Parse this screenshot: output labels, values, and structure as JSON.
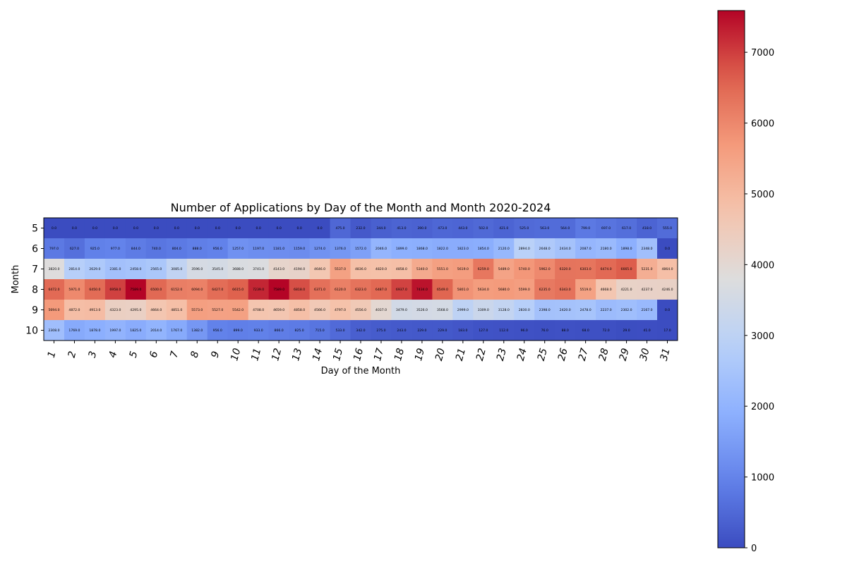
{
  "chart_data": {
    "type": "heatmap",
    "title": "Number of Applications by Day of the Month and Month 2020-2024",
    "xlabel": "Day of the Month",
    "ylabel": "Month",
    "colormap": "coolwarm",
    "colorbar": {
      "min": 0,
      "max": 7589,
      "ticks": [
        "0",
        "1000",
        "2000",
        "3000",
        "4000",
        "5000",
        "6000",
        "7000"
      ],
      "tick_values": [
        0,
        1000,
        2000,
        3000,
        4000,
        5000,
        6000,
        7000
      ]
    },
    "x_categories": [
      "1",
      "2",
      "3",
      "4",
      "5",
      "6",
      "7",
      "8",
      "9",
      "10",
      "11",
      "12",
      "13",
      "14",
      "15",
      "16",
      "17",
      "18",
      "19",
      "20",
      "21",
      "22",
      "23",
      "24",
      "25",
      "26",
      "27",
      "28",
      "29",
      "30",
      "31"
    ],
    "y_categories": [
      "5",
      "6",
      "7",
      "8",
      "9",
      "10"
    ],
    "values": [
      [
        0,
        0,
        0,
        0,
        0,
        0,
        0,
        0,
        0,
        0,
        0,
        0,
        0,
        0,
        475,
        232,
        344,
        413,
        390,
        473,
        443,
        502,
        421,
        525,
        563,
        564,
        799,
        697,
        617,
        418,
        555
      ],
      [
        797,
        627,
        925,
        977,
        844,
        740,
        804,
        888,
        956,
        1257,
        1197,
        1181,
        1159,
        1274,
        1376,
        1572,
        2046,
        1899,
        1868,
        1822,
        1823,
        1854,
        2120,
        2894,
        2648,
        2434,
        2087,
        2180,
        1898,
        2348,
        0
      ],
      [
        3820,
        2814,
        2629,
        2381,
        2458,
        2565,
        3085,
        3596,
        3545,
        3688,
        3741,
        4143,
        4194,
        4646,
        5537,
        4836,
        4820,
        4858,
        5340,
        5551,
        5619,
        6259,
        5489,
        5740,
        5962,
        6320,
        6303,
        6474,
        6665,
        5231,
        4864
      ],
      [
        6472,
        5971,
        6450,
        6958,
        7589,
        6500,
        6152,
        6094,
        6427,
        6615,
        7239,
        7589,
        6818,
        6371,
        6120,
        6323,
        6487,
        6937,
        7434,
        6549,
        5801,
        5634,
        5680,
        5599,
        6235,
        6343,
        5519,
        4668,
        4221,
        4237,
        4246
      ],
      [
        5694,
        4872,
        4913,
        4323,
        4295,
        4664,
        4851,
        5573,
        5527,
        5542,
        4708,
        4659,
        4858,
        4566,
        4797,
        4556,
        4037,
        3479,
        3526,
        3568,
        2999,
        3309,
        3128,
        2830,
        2398,
        2420,
        2478,
        2237,
        2302,
        2167,
        0
      ],
      [
        2308,
        1769,
        1878,
        1997,
        1825,
        2014,
        1767,
        1382,
        956,
        899,
        933,
        866,
        825,
        715,
        533,
        342,
        275,
        243,
        229,
        229,
        183,
        127,
        112,
        96,
        76,
        88,
        68,
        72,
        29,
        41,
        17
      ]
    ]
  }
}
